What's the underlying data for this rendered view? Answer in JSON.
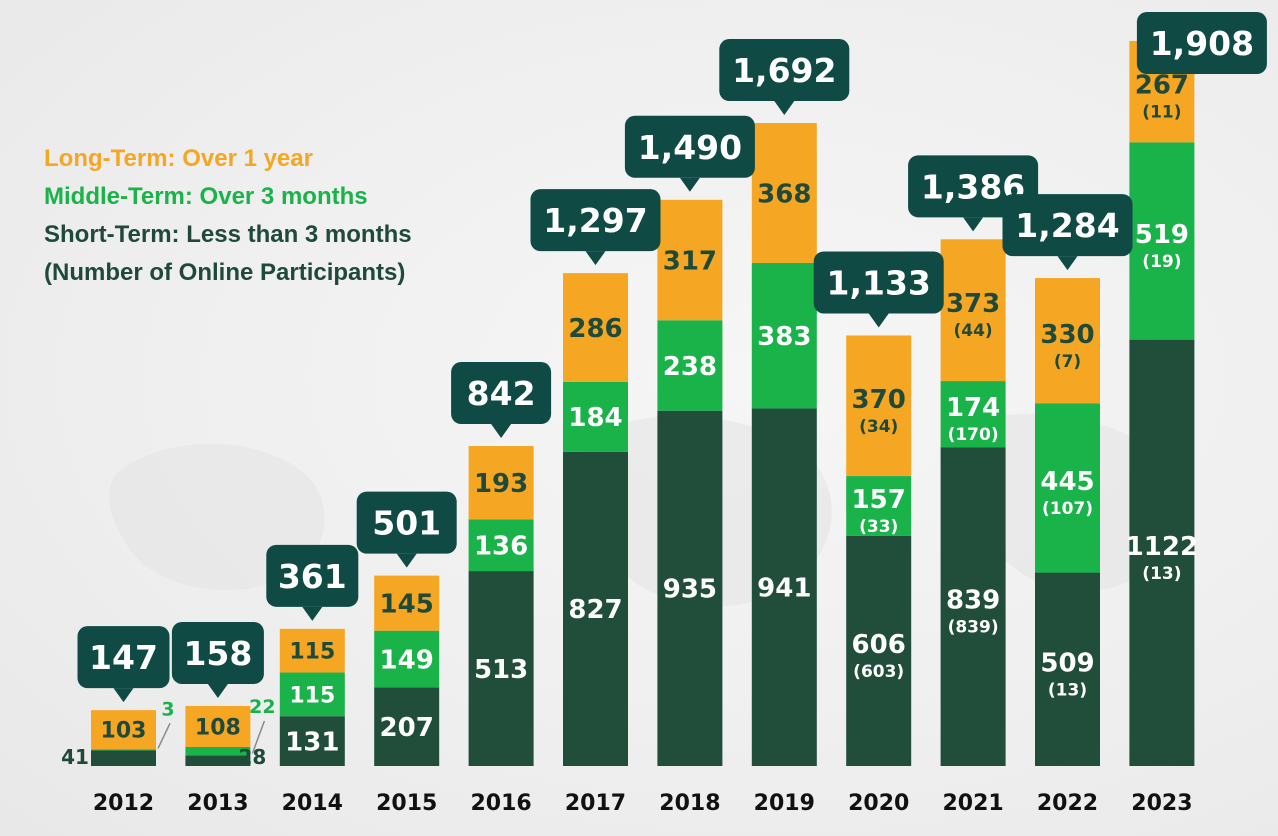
{
  "chart_data": {
    "type": "bar",
    "stacked": true,
    "categories": [
      "2012",
      "2013",
      "2014",
      "2015",
      "2016",
      "2017",
      "2018",
      "2019",
      "2020",
      "2021",
      "2022",
      "2023"
    ],
    "series": [
      {
        "name": "Short-Term: Less than 3 months",
        "color": "#214d3b",
        "values": [
          41,
          28,
          131,
          207,
          513,
          827,
          935,
          941,
          606,
          839,
          509,
          1122
        ],
        "labels": [
          "41",
          "28",
          "131",
          "207",
          "513",
          "827",
          "935",
          "941",
          "606",
          "839",
          "509",
          "1122"
        ],
        "online": [
          null,
          null,
          null,
          null,
          null,
          null,
          null,
          null,
          "(603)",
          "(839)",
          "(13)",
          "(13)"
        ]
      },
      {
        "name": "Middle-Term: Over 3 months",
        "color": "#19b34a",
        "values": [
          3,
          22,
          115,
          149,
          136,
          184,
          238,
          383,
          157,
          174,
          445,
          519
        ],
        "labels": [
          "3",
          "22",
          "115",
          "149",
          "136",
          "184",
          "238",
          "383",
          "157",
          "174",
          "445",
          "519"
        ],
        "online": [
          null,
          null,
          null,
          null,
          null,
          null,
          null,
          null,
          "(33)",
          "(170)",
          "(107)",
          "(19)"
        ]
      },
      {
        "name": "Long-Term: Over 1 year",
        "color": "#f5a623",
        "values": [
          103,
          108,
          115,
          145,
          193,
          286,
          317,
          368,
          370,
          373,
          330,
          267
        ],
        "labels": [
          "103",
          "108",
          "115",
          "145",
          "193",
          "286",
          "317",
          "368",
          "370",
          "373",
          "330",
          "267"
        ],
        "online": [
          null,
          null,
          null,
          null,
          null,
          null,
          null,
          null,
          "(34)",
          "(44)",
          "(7)",
          "(11)"
        ]
      }
    ],
    "totals": [
      147,
      158,
      361,
      501,
      842,
      1297,
      1490,
      1692,
      1133,
      1386,
      1284,
      1908
    ],
    "total_labels": [
      "147",
      "158",
      "361",
      "501",
      "842",
      "1,297",
      "1,490",
      "1,692",
      "1,133",
      "1,386",
      "1,284",
      "1,908"
    ],
    "ylim": [
      0,
      1908
    ],
    "grid": false,
    "legend_position": "top-left",
    "legend": [
      {
        "text": "Long-Term: Over 1 year",
        "color": "#f5a623"
      },
      {
        "text": "Middle-Term: Over 3 months",
        "color": "#19b34a"
      },
      {
        "text": "Short-Term: Less than 3 months",
        "color": "#1f4a3a"
      },
      {
        "text": "(Number of Online Participants)",
        "color": "#1f4a3a"
      }
    ],
    "callout_color": "#0f4a44"
  }
}
